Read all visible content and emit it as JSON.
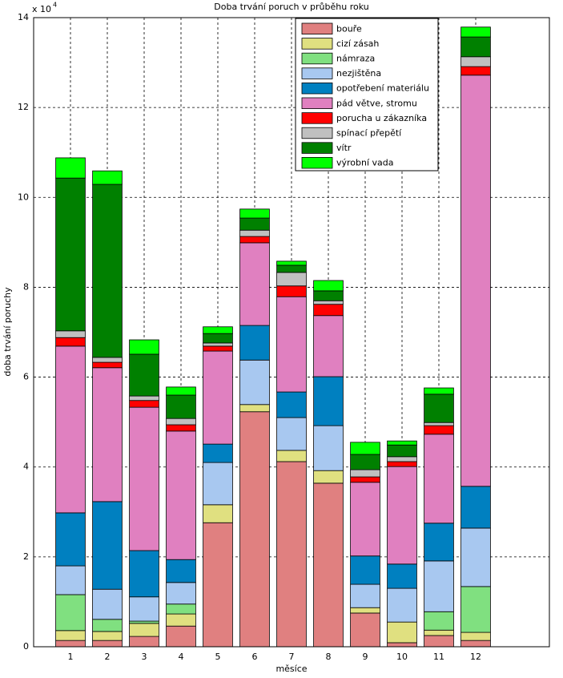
{
  "chart_data": {
    "type": "stacked-bar",
    "title": "Doba trvání poruch v průběhu roku",
    "x_label": "měsíce",
    "y_label": "doba trvání poruchy",
    "y_scale_label": "x 10",
    "y_scale_exponent": "4",
    "x": [
      1,
      2,
      3,
      4,
      5,
      6,
      7,
      8,
      9,
      10,
      11,
      12
    ],
    "xlim": [
      0,
      14
    ],
    "xticks": [
      1,
      2,
      3,
      4,
      5,
      6,
      7,
      8,
      9,
      10,
      11,
      12
    ],
    "ylim": [
      0,
      14
    ],
    "yticks": [
      0,
      2,
      4,
      6,
      8,
      10,
      12,
      14
    ],
    "grid": true,
    "legend": "top-right",
    "series": [
      {
        "name": "bouře",
        "color": "#e08080",
        "values": [
          0.14,
          0.14,
          0.23,
          0.46,
          2.76,
          5.23,
          4.12,
          3.64,
          0.75,
          0.09,
          0.25,
          0.14
        ]
      },
      {
        "name": "cizí zásah",
        "color": "#e0e080",
        "values": [
          0.22,
          0.2,
          0.29,
          0.27,
          0.4,
          0.16,
          0.25,
          0.28,
          0.12,
          0.46,
          0.12,
          0.18
        ]
      },
      {
        "name": "námraza",
        "color": "#80e080",
        "values": [
          0.8,
          0.27,
          0.05,
          0.22,
          0,
          0,
          0,
          0,
          0,
          0,
          0.41,
          1.02
        ]
      },
      {
        "name": "nezjištěna",
        "color": "#a8c8f0",
        "values": [
          0.64,
          0.67,
          0.54,
          0.48,
          0.94,
          0.99,
          0.73,
          1.0,
          0.52,
          0.75,
          1.13,
          1.3
        ]
      },
      {
        "name": "opotřebení materiálu",
        "color": "#0080c0",
        "values": [
          1.18,
          1.95,
          1.03,
          0.51,
          0.41,
          0.77,
          0.57,
          1.09,
          0.63,
          0.54,
          0.84,
          0.93
        ]
      },
      {
        "name": "pád větve, stromu",
        "color": "#e080c0",
        "values": [
          3.71,
          2.98,
          3.19,
          2.86,
          2.07,
          1.84,
          2.12,
          1.36,
          1.64,
          2.17,
          1.98,
          9.15
        ]
      },
      {
        "name": "porucha u zákazníka",
        "color": "#ff0000",
        "values": [
          0.19,
          0.12,
          0.15,
          0.14,
          0.11,
          0.14,
          0.24,
          0.25,
          0.12,
          0.11,
          0.19,
          0.19
        ]
      },
      {
        "name": "spínací přepětí",
        "color": "#c0c0c0",
        "values": [
          0.15,
          0.11,
          0.1,
          0.14,
          0.07,
          0.14,
          0.3,
          0.08,
          0.16,
          0.11,
          0.07,
          0.22
        ]
      },
      {
        "name": "vítr",
        "color": "#008000",
        "values": [
          3.4,
          3.85,
          0.93,
          0.52,
          0.21,
          0.27,
          0.16,
          0.22,
          0.34,
          0.26,
          0.63,
          0.44
        ]
      },
      {
        "name": "výrobní vada",
        "color": "#00ff00",
        "values": [
          0.45,
          0.3,
          0.32,
          0.18,
          0.15,
          0.2,
          0.09,
          0.23,
          0.27,
          0.09,
          0.14,
          0.22
        ]
      }
    ]
  }
}
